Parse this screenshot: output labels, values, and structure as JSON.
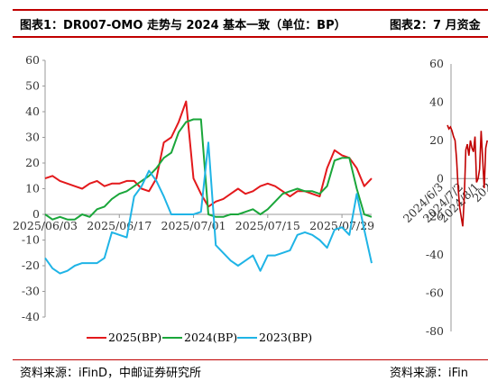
{
  "header": {
    "left_title": "图表1：DR007-OMO 走势与 2024 基本一致（单位：BP）",
    "right_title": "图表2：7 月资金"
  },
  "footer": {
    "left_source": "资料来源：iFinD，中邮证券研究所",
    "right_source": "资料来源：iFin"
  },
  "colors": {
    "rule": "#c00000",
    "s2025": "#e3191c",
    "s2024": "#1aa63a",
    "s2023": "#1fb4e6",
    "right_line": "#c00000"
  },
  "chart_data": [
    {
      "type": "line",
      "title": "",
      "ylim": [
        -40,
        60
      ],
      "yticks": [
        -40,
        -30,
        -20,
        -10,
        0,
        10,
        20,
        30,
        40,
        50,
        60
      ],
      "x_tick_labels": [
        "2025/06/03",
        "2025/06/17",
        "2025/07/01",
        "2025/07/15",
        "2025/07/29"
      ],
      "x_tick_index": [
        0,
        10,
        20,
        30,
        40
      ],
      "x_count": 45,
      "legend": "bottom",
      "series": [
        {
          "name": "2025(BP)",
          "color": "#e3191c",
          "values": [
            14,
            15,
            13,
            12,
            11,
            10,
            12,
            13,
            11,
            12,
            12,
            13,
            13,
            10,
            9,
            14,
            28,
            30,
            36,
            44,
            14,
            8,
            3,
            5,
            6,
            8,
            10,
            8,
            9,
            11,
            12,
            11,
            9,
            7,
            9,
            9,
            8,
            7,
            18,
            25,
            23,
            22,
            18,
            11,
            14
          ]
        },
        {
          "name": "2024(BP)",
          "color": "#1aa63a",
          "values": [
            0,
            -2,
            -1,
            -2,
            -2,
            0,
            -1,
            2,
            3,
            6,
            8,
            9,
            11,
            13,
            15,
            18,
            22,
            24,
            32,
            36,
            37,
            37,
            0,
            -1,
            -1,
            0,
            0,
            1,
            2,
            0,
            2,
            5,
            8,
            9,
            10,
            9,
            9,
            8,
            11,
            21,
            22,
            22,
            10,
            0,
            -1
          ]
        },
        {
          "name": "2023(BP)",
          "color": "#1fb4e6",
          "values": [
            -17,
            -21,
            -23,
            -22,
            -20,
            -19,
            -19,
            -19,
            -17,
            -7,
            -8,
            -9,
            7,
            11,
            17,
            13,
            7,
            0,
            0,
            0,
            0,
            1,
            28,
            -12,
            -15,
            -18,
            -20,
            -18,
            -16,
            -22,
            -16,
            -16,
            -15,
            -14,
            -8,
            -7,
            -8,
            -10,
            -13,
            -6,
            -5,
            -8,
            8,
            -6,
            -19
          ]
        }
      ]
    },
    {
      "type": "line",
      "title": "",
      "ylim": [
        -80,
        60
      ],
      "yticks": [
        -80,
        -60,
        -40,
        -20,
        0,
        20,
        40,
        60
      ],
      "x_tick_labels": [
        "2024/6/3",
        "2024/7/2",
        "2024/8/1",
        "202"
      ],
      "series": [
        {
          "color": "#c00000",
          "values": [
            28,
            26,
            27,
            25,
            22,
            20,
            10,
            -5,
            -15,
            -20,
            -25,
            -10,
            15,
            18,
            12,
            20,
            16,
            14,
            22,
            -2,
            0,
            5,
            25,
            10,
            -5,
            16,
            20
          ]
        }
      ]
    }
  ]
}
